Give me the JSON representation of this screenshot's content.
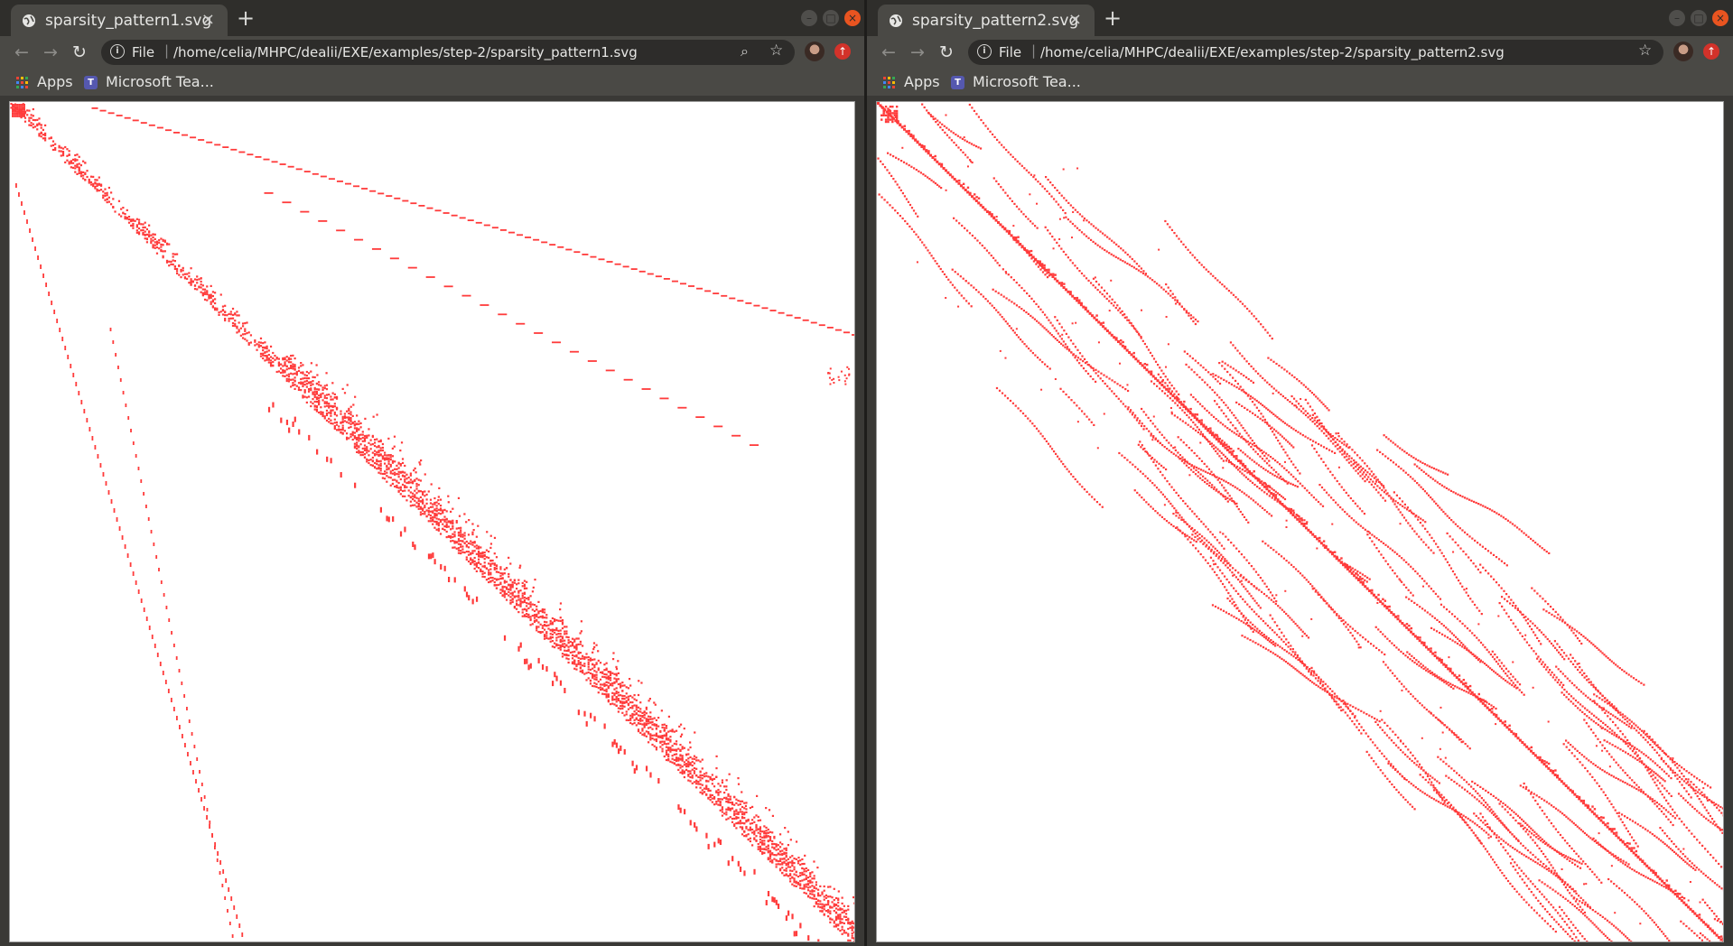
{
  "windows": [
    {
      "tab_title": "sparsity_pattern1.svg",
      "tab_close": "×",
      "new_tab": "+",
      "scheme": "File",
      "url": "/home/celia/MHPC/dealii/EXE/examples/step-2/sparsity_pattern1.svg",
      "bookmarks": [
        "Apps",
        "Microsoft Tea..."
      ],
      "pattern_color": "#ff3b3b"
    },
    {
      "tab_title": "sparsity_pattern2.svg",
      "tab_close": "×",
      "new_tab": "+",
      "scheme": "File",
      "url": "/home/celia/MHPC/dealii/EXE/examples/step-2/sparsity_pattern2.svg",
      "bookmarks": [
        "Apps",
        "Microsoft Tea..."
      ],
      "pattern_color": "#ff3b3b"
    }
  ],
  "icons": {
    "back": "back-arrow-icon",
    "forward": "forward-arrow-icon",
    "reload": "reload-icon",
    "info": "info-icon",
    "zoom": "zoom-icon",
    "star": "star-icon",
    "avatar": "profile-avatar-icon",
    "extension": "extension-icon",
    "apps": "apps-grid-icon",
    "teams": "teams-icon"
  },
  "colors": {
    "titlebar": "#2f2e2b",
    "toolbar": "#4a4945",
    "close_button": "#e95420",
    "accent_red": "#ff3b3b"
  }
}
